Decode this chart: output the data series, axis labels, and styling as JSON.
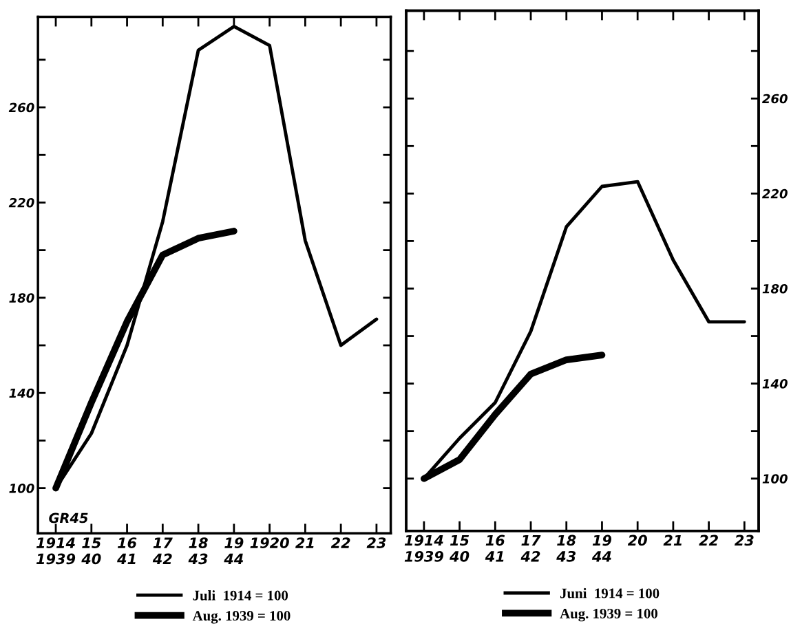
{
  "chart_data": [
    {
      "type": "line",
      "categories": [
        "1914\n1939",
        "15\n40",
        "16\n41",
        "17\n42",
        "18\n43",
        "19\n44",
        "1920",
        "21",
        "22",
        "23"
      ],
      "series": [
        {
          "name": "Juli  1914 = 100",
          "color": "#000000",
          "values": [
            100,
            123,
            160,
            212,
            284,
            294,
            286,
            204,
            160,
            171
          ]
        },
        {
          "name": "Aug. 1939 = 100",
          "color": "#000000",
          "values": [
            100,
            136,
            170,
            198,
            205,
            208,
            null,
            null,
            null,
            null
          ]
        }
      ],
      "ylim": [
        81,
        298
      ],
      "yticks": [
        100,
        {
          "value": 120,
          "label": null
        },
        140,
        {
          "value": 160,
          "label": null
        },
        180,
        {
          "value": 200,
          "label": null
        },
        220,
        {
          "value": 240,
          "label": null
        },
        260,
        {
          "value": 280,
          "label": null
        }
      ],
      "annotations": [
        "GR45"
      ],
      "legend": "bottom",
      "grid": false,
      "marker": "none",
      "line_style": "solid"
    },
    {
      "type": "line",
      "categories": [
        "1914\n1939",
        "15\n40",
        "16\n41",
        "17\n42",
        "18\n43",
        "19\n44",
        "20",
        "21",
        "22",
        "23"
      ],
      "series": [
        {
          "name": "Juni  1914 = 100",
          "color": "#000000",
          "axis": "y2",
          "values": [
            100,
            117,
            132,
            162,
            206,
            223,
            225,
            192,
            166,
            166
          ]
        },
        {
          "name": "Aug. 1939 = 100",
          "color": "#000000",
          "axis": "y2",
          "values": [
            100,
            108,
            127,
            144,
            150,
            152,
            null,
            null,
            null,
            null
          ]
        }
      ],
      "y2lim": [
        78,
        297
      ],
      "y2ticks": [
        100,
        {
          "value": 120,
          "label": null
        },
        140,
        {
          "value": 160,
          "label": null
        },
        180,
        {
          "value": 200,
          "label": null
        },
        220,
        {
          "value": 240,
          "label": null
        },
        260,
        {
          "value": 280,
          "label": null
        }
      ],
      "legend": "bottom",
      "grid": false,
      "marker": "none",
      "line_style": "solid"
    }
  ]
}
